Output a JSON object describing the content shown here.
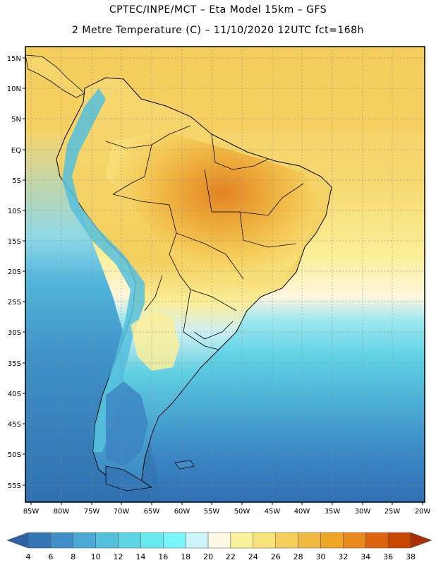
{
  "header": {
    "line1": "CPTEC/INPE/MCT –  Eta Model 15km – GFS",
    "line2": "2 Metre Temperature (C) – 11/10/2020 12UTC fct=168h"
  },
  "map": {
    "lat_labels": [
      "15N",
      "10N",
      "5N",
      "EQ",
      "5S",
      "10S",
      "15S",
      "20S",
      "25S",
      "30S",
      "35S",
      "40S",
      "45S",
      "50S",
      "55S"
    ],
    "lon_labels": [
      "85W",
      "80W",
      "75W",
      "70W",
      "65W",
      "60W",
      "55W",
      "50W",
      "45W",
      "40W",
      "35W",
      "30W",
      "25W",
      "20W"
    ]
  },
  "colorbar": {
    "labels": [
      "4",
      "6",
      "8",
      "10",
      "12",
      "14",
      "16",
      "18",
      "20",
      "22",
      "24",
      "26",
      "28",
      "30",
      "32",
      "34",
      "36",
      "38"
    ],
    "colors": [
      "#2e61a6",
      "#3276b4",
      "#3f8ec8",
      "#4ca8d4",
      "#55c0dc",
      "#5fd4e4",
      "#69e8ee",
      "#7af6fa",
      "#cdf4fa",
      "#fdf8e4",
      "#fcf29c",
      "#f8e27a",
      "#f4cd5a",
      "#f0b942",
      "#eea626",
      "#e88a1e",
      "#dc6410",
      "#c84800",
      "#a83008"
    ]
  },
  "colors": {
    "ocean_cold": "#3b80c0",
    "ocean_mid": "#50b8dc",
    "ocean_warm": "#f2d266",
    "land_hot": "#e89c2e",
    "border": "#000000"
  }
}
